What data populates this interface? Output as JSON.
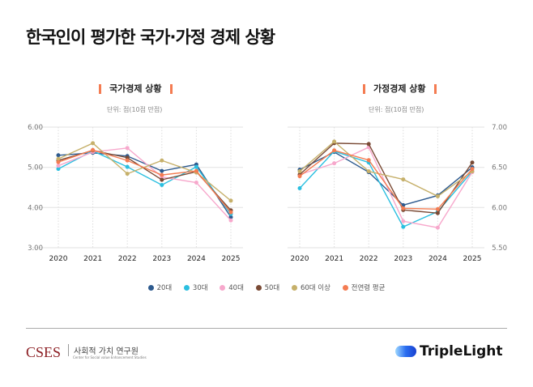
{
  "title": "한국인이 평가한 국가·가정 경제 상황",
  "legend": [
    "20대",
    "30대",
    "40대",
    "50대",
    "60대 이상",
    "전연령 평균"
  ],
  "colors": [
    "#2d5a8e",
    "#2bbfe0",
    "#f7a8cc",
    "#7a4a35",
    "#c6b06a",
    "#f47c52"
  ],
  "footer": {
    "org": "CSES",
    "org_kr": "사회적 가치 연구원",
    "org_en": "Center for Social value Enhancement Studies",
    "brand": "TripleLight"
  },
  "chart_data": [
    {
      "type": "line",
      "title": "국가경제 상황",
      "unit": "단위: 점(10점 만점)",
      "categories": [
        "2020",
        "2021",
        "2022",
        "2023",
        "2024",
        "2025"
      ],
      "ylim": [
        3,
        6
      ],
      "yticks": [
        "3.00",
        "4.00",
        "5.00",
        "6.00"
      ],
      "yaxis": "left",
      "grid": true,
      "series": [
        {
          "name": "20대",
          "values": [
            5.3,
            5.36,
            5.28,
            4.91,
            5.07,
            3.76
          ]
        },
        {
          "name": "30대",
          "values": [
            4.96,
            5.41,
            5.01,
            4.56,
            5.01,
            3.84
          ]
        },
        {
          "name": "40대",
          "values": [
            5.04,
            5.38,
            5.48,
            4.76,
            4.62,
            3.68
          ]
        },
        {
          "name": "50대",
          "values": [
            5.17,
            5.42,
            5.24,
            4.69,
            4.89,
            3.93
          ]
        },
        {
          "name": "60대 이상",
          "values": [
            5.21,
            5.6,
            4.84,
            5.17,
            4.87,
            4.17
          ]
        },
        {
          "name": "전연령 평균",
          "values": [
            5.13,
            5.43,
            5.17,
            4.81,
            4.91,
            3.88
          ]
        }
      ]
    },
    {
      "type": "line",
      "title": "가정경제 상황",
      "unit": "단위: 점(10점 만점)",
      "categories": [
        "2020",
        "2021",
        "2022",
        "2023",
        "2024",
        "2025"
      ],
      "ylim": [
        5.5,
        7
      ],
      "yticks": [
        "5.50",
        "6.00",
        "6.50",
        "7.00"
      ],
      "yaxis": "right",
      "grid": true,
      "series": [
        {
          "name": "20대",
          "values": [
            6.47,
            6.69,
            6.44,
            6.03,
            6.15,
            6.5
          ]
        },
        {
          "name": "30대",
          "values": [
            6.24,
            6.7,
            6.56,
            5.76,
            5.95,
            6.45
          ]
        },
        {
          "name": "40대",
          "values": [
            6.41,
            6.55,
            6.75,
            5.83,
            5.75,
            6.44
          ]
        },
        {
          "name": "50대",
          "values": [
            6.41,
            6.8,
            6.79,
            5.97,
            5.93,
            6.56
          ]
        },
        {
          "name": "60대 이상",
          "values": [
            6.45,
            6.82,
            6.45,
            6.35,
            6.14,
            6.45
          ]
        },
        {
          "name": "전연령 평균",
          "values": [
            6.39,
            6.71,
            6.59,
            5.99,
            5.98,
            6.48
          ]
        }
      ]
    }
  ]
}
